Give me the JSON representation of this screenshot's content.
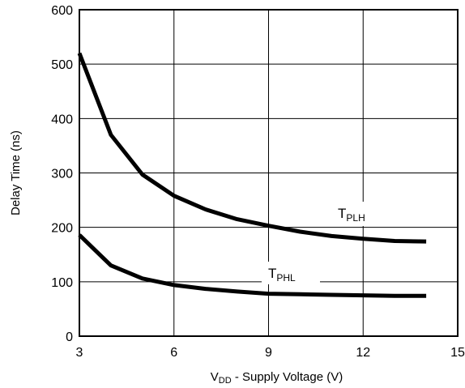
{
  "chart_data": {
    "type": "line",
    "xlabel_main": "V",
    "xlabel_sub": "DD",
    "xlabel_rest": " -  Supply Voltage (V)",
    "ylabel": "Delay Time (ns)",
    "xlim": [
      3,
      15
    ],
    "ylim": [
      0,
      600
    ],
    "xticks": [
      3,
      6,
      9,
      12,
      15
    ],
    "yticks": [
      0,
      100,
      200,
      300,
      400,
      500,
      600
    ],
    "grid": true,
    "series": [
      {
        "name": "T",
        "name_sub": "PLH",
        "x": [
          3,
          4,
          5,
          6,
          7,
          8,
          9,
          10,
          11,
          12,
          13,
          14
        ],
        "y": [
          520,
          370,
          297,
          258,
          233,
          215,
          203,
          192,
          184,
          179,
          175,
          174
        ]
      },
      {
        "name": "T",
        "name_sub": "PHL",
        "x": [
          3,
          4,
          5,
          6,
          7,
          8,
          9,
          10,
          11,
          12,
          13,
          14
        ],
        "y": [
          186,
          130,
          106,
          94,
          87,
          82,
          78,
          77,
          76,
          75,
          74,
          74
        ]
      }
    ]
  }
}
